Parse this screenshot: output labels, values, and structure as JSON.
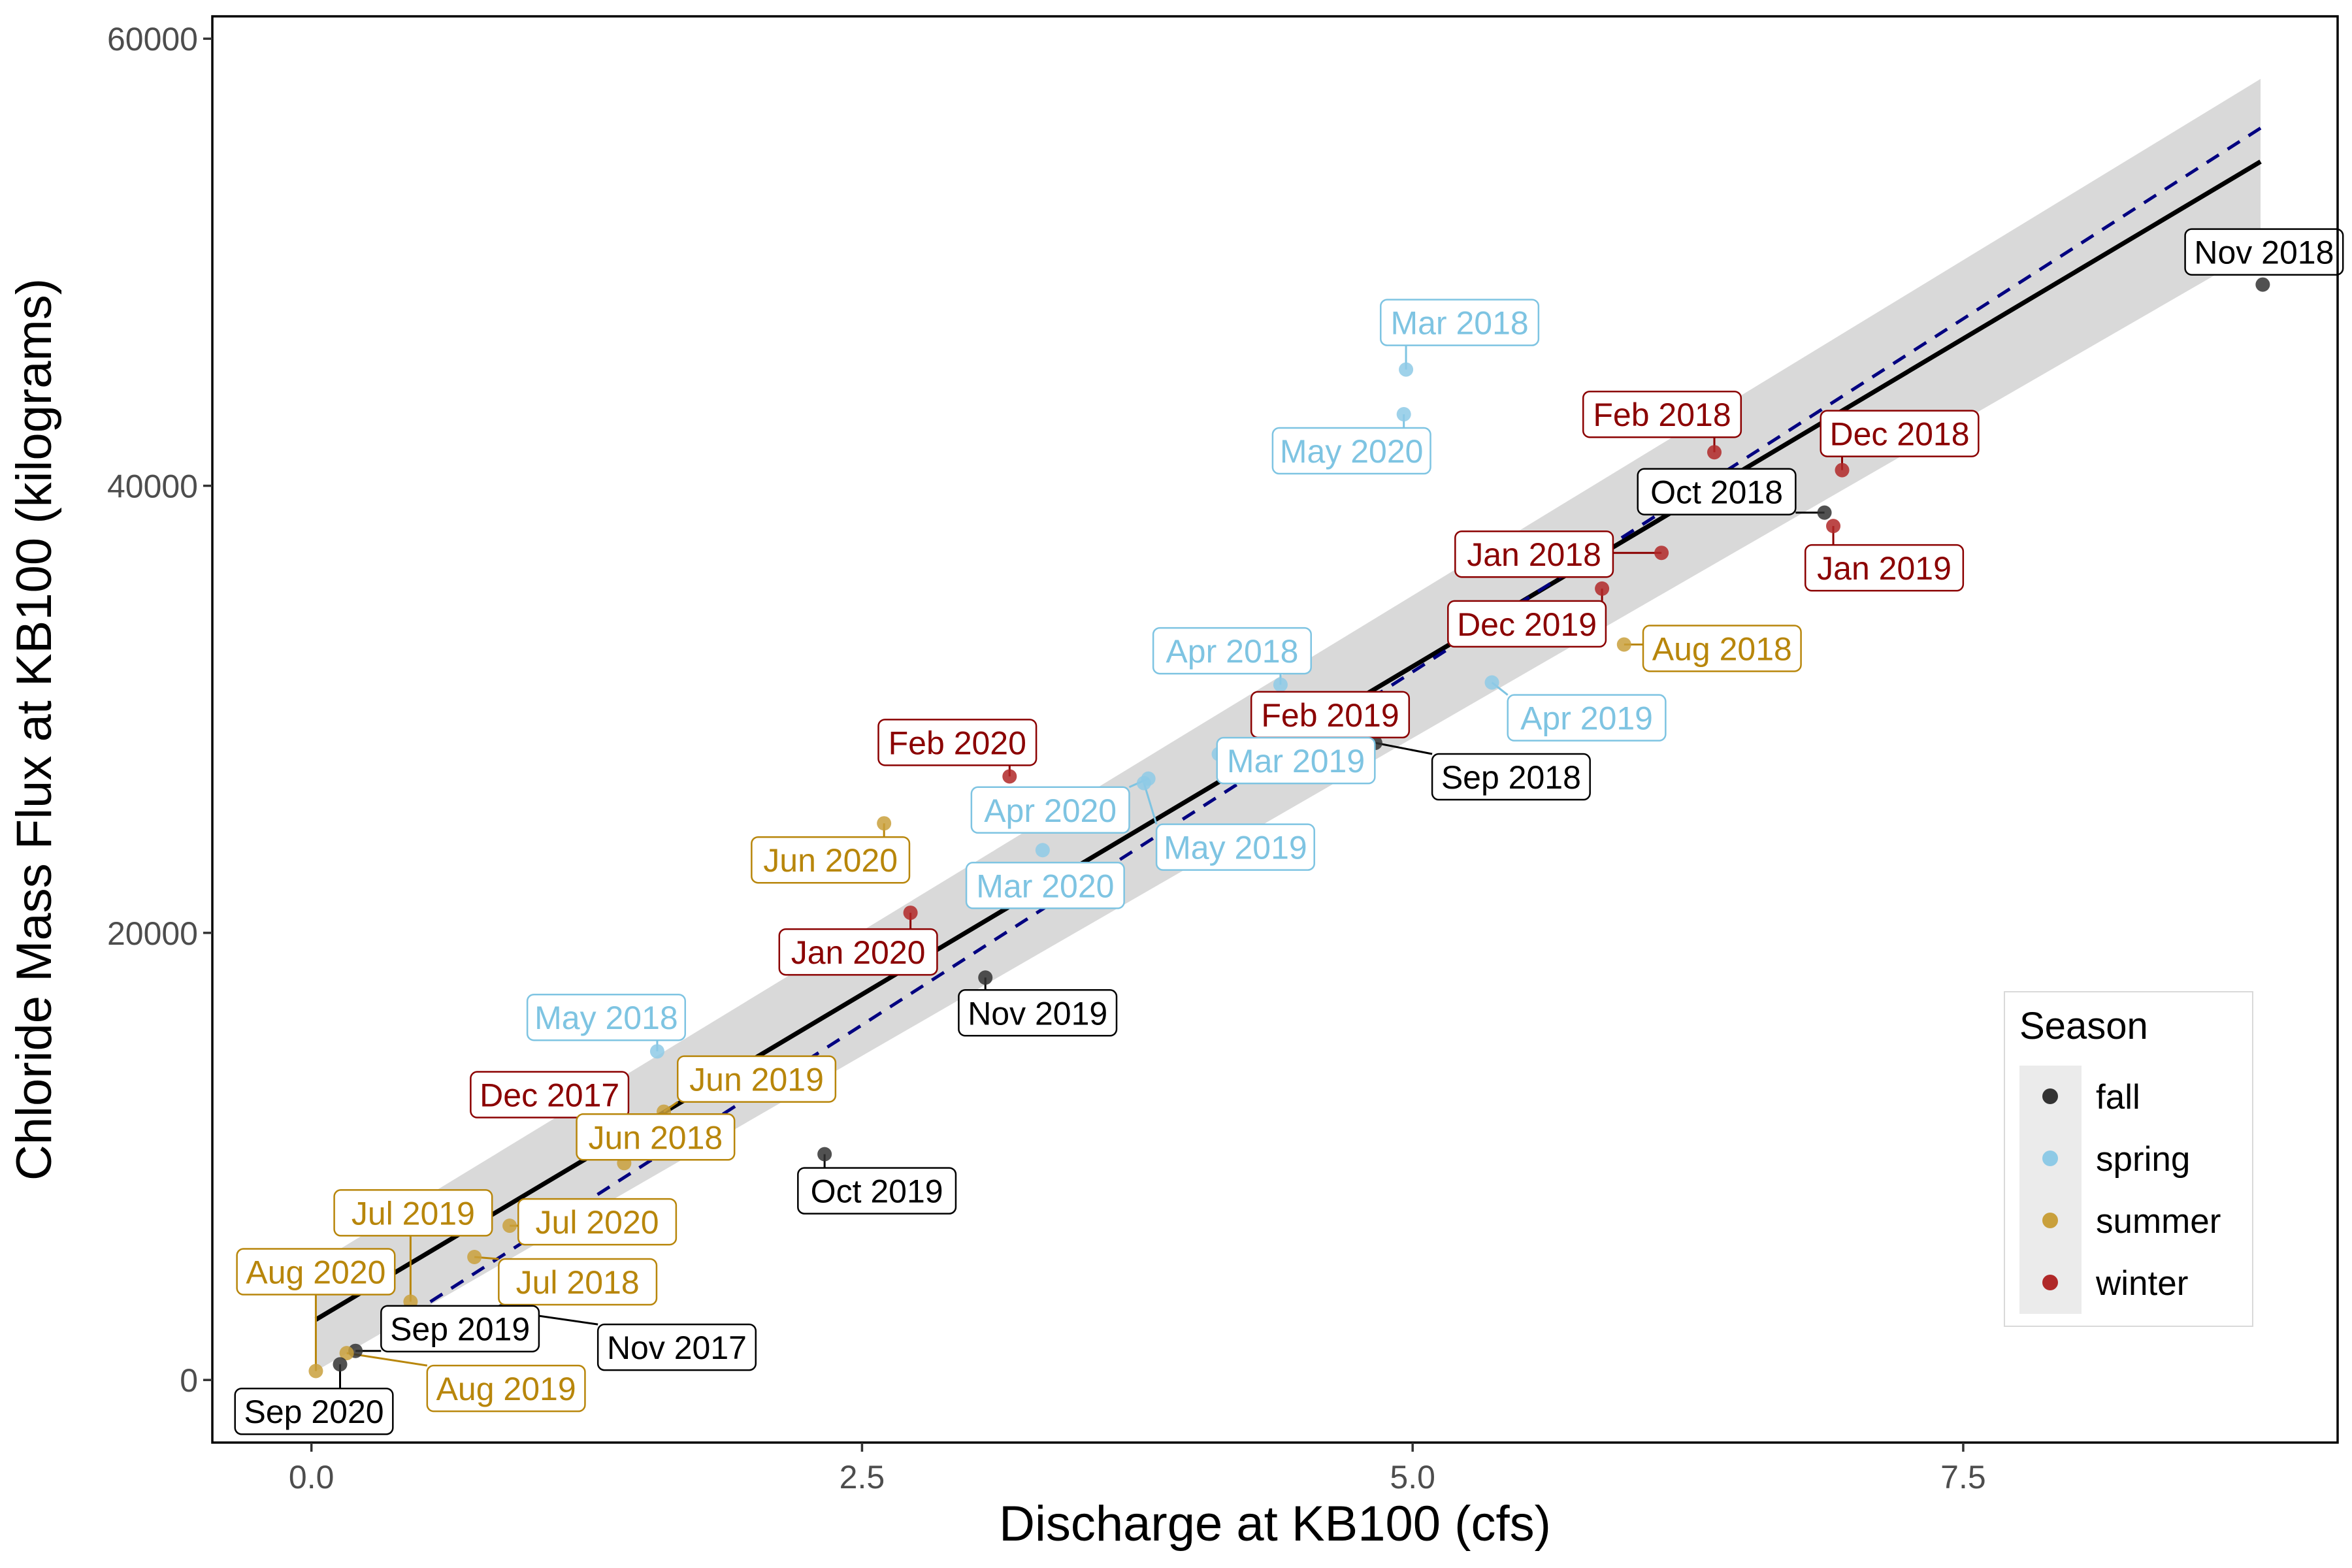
{
  "chart_data": {
    "type": "scatter",
    "xlabel": "Discharge at KB100 (cfs)",
    "ylabel": "Chloride Mass Flux at KB100 (kilograms)",
    "xlim": [
      -0.45,
      9.2
    ],
    "ylim": [
      -2800,
      61000
    ],
    "x_ticks": [
      0.0,
      2.5,
      5.0,
      7.5
    ],
    "x_tick_labels": [
      "0.0",
      "2.5",
      "5.0",
      "7.5"
    ],
    "y_ticks": [
      0,
      20000,
      40000,
      60000
    ],
    "y_tick_labels": [
      "0",
      "20000",
      "40000",
      "60000"
    ],
    "grid": false,
    "legend": {
      "title": "Season",
      "placement": "bottom-right",
      "entries": [
        {
          "name": "fall",
          "color": "#333333"
        },
        {
          "name": "spring",
          "color": "#8ecae6"
        },
        {
          "name": "summer",
          "color": "#c9a03c"
        },
        {
          "name": "winter",
          "color": "#b02828"
        }
      ]
    },
    "season_label_colors": {
      "fall": "#000000",
      "spring": "#7ec4e2",
      "summer": "#b8860b",
      "winter": "#8b0000"
    },
    "fit_line": {
      "x": [
        0.02,
        8.85
      ],
      "y": [
        2700,
        54500
      ],
      "color": "#000000"
    },
    "confidence_band": {
      "x": [
        0.02,
        8.85
      ],
      "upper": [
        5200,
        58200
      ],
      "lower": [
        400,
        50600
      ],
      "color": "#d9d9d9"
    },
    "reference_line": {
      "x": [
        0.35,
        8.85
      ],
      "y": [
        2300,
        56000
      ],
      "color": "#000080",
      "style": "dashed"
    },
    "points": [
      {
        "label": "Nov 2018",
        "x": 8.86,
        "y": 49000,
        "season": "fall"
      },
      {
        "label": "Mar 2018",
        "x": 4.97,
        "y": 45200,
        "season": "spring"
      },
      {
        "label": "May 2020",
        "x": 4.96,
        "y": 43200,
        "season": "spring"
      },
      {
        "label": "Feb 2018",
        "x": 6.37,
        "y": 41500,
        "season": "winter"
      },
      {
        "label": "Dec 2018",
        "x": 6.95,
        "y": 40700,
        "season": "winter"
      },
      {
        "label": "Oct 2018",
        "x": 6.87,
        "y": 38800,
        "season": "fall"
      },
      {
        "label": "Jan 2019",
        "x": 6.91,
        "y": 38200,
        "season": "winter"
      },
      {
        "label": "Jan 2018",
        "x": 6.13,
        "y": 37000,
        "season": "winter"
      },
      {
        "label": "Dec 2019",
        "x": 5.86,
        "y": 35400,
        "season": "winter"
      },
      {
        "label": "Aug 2018",
        "x": 5.96,
        "y": 32900,
        "season": "summer"
      },
      {
        "label": "Apr 2018",
        "x": 4.4,
        "y": 31100,
        "season": "spring"
      },
      {
        "label": "Apr 2019",
        "x": 5.36,
        "y": 31200,
        "season": "spring"
      },
      {
        "label": "Feb 2019",
        "x": 4.24,
        "y": 28300,
        "season": "winter"
      },
      {
        "label": "Sep 2018",
        "x": 4.83,
        "y": 28500,
        "season": "fall"
      },
      {
        "label": "Mar 2019",
        "x": 4.12,
        "y": 28000,
        "season": "spring"
      },
      {
        "label": "Feb 2020",
        "x": 3.17,
        "y": 27000,
        "season": "winter"
      },
      {
        "label": "Apr 2020",
        "x": 3.8,
        "y": 26900,
        "season": "spring"
      },
      {
        "label": "May 2019",
        "x": 3.78,
        "y": 26700,
        "season": "spring"
      },
      {
        "label": "Jun 2020",
        "x": 2.6,
        "y": 24900,
        "season": "summer"
      },
      {
        "label": "Mar 2020",
        "x": 3.32,
        "y": 23700,
        "season": "spring"
      },
      {
        "label": "Jan 2020",
        "x": 2.72,
        "y": 20900,
        "season": "winter"
      },
      {
        "label": "Nov 2019",
        "x": 3.06,
        "y": 18000,
        "season": "fall"
      },
      {
        "label": "May 2018",
        "x": 1.57,
        "y": 14700,
        "season": "spring"
      },
      {
        "label": "Jun 2019",
        "x": 1.6,
        "y": 12000,
        "season": "summer"
      },
      {
        "label": "Dec 2017",
        "x": 1.28,
        "y": 11300,
        "season": "winter"
      },
      {
        "label": "Oct 2019",
        "x": 2.33,
        "y": 10100,
        "season": "fall"
      },
      {
        "label": "Jun 2018",
        "x": 1.42,
        "y": 9700,
        "season": "summer"
      },
      {
        "label": "Jul 2020",
        "x": 0.9,
        "y": 6900,
        "season": "summer"
      },
      {
        "label": "Jul 2019",
        "x": 0.45,
        "y": 3500,
        "season": "summer"
      },
      {
        "label": "Jul 2018",
        "x": 0.74,
        "y": 5500,
        "season": "summer"
      },
      {
        "label": "Nov 2017",
        "x": 0.87,
        "y": 3100,
        "season": "fall"
      },
      {
        "label": "Aug 2020",
        "x": 0.02,
        "y": 400,
        "season": "summer"
      },
      {
        "label": "Sep 2019",
        "x": 0.2,
        "y": 1300,
        "season": "fall"
      },
      {
        "label": "Aug 2019",
        "x": 0.16,
        "y": 1200,
        "season": "summer"
      },
      {
        "label": "Sep 2020",
        "x": 0.13,
        "y": 700,
        "season": "fall"
      }
    ]
  }
}
